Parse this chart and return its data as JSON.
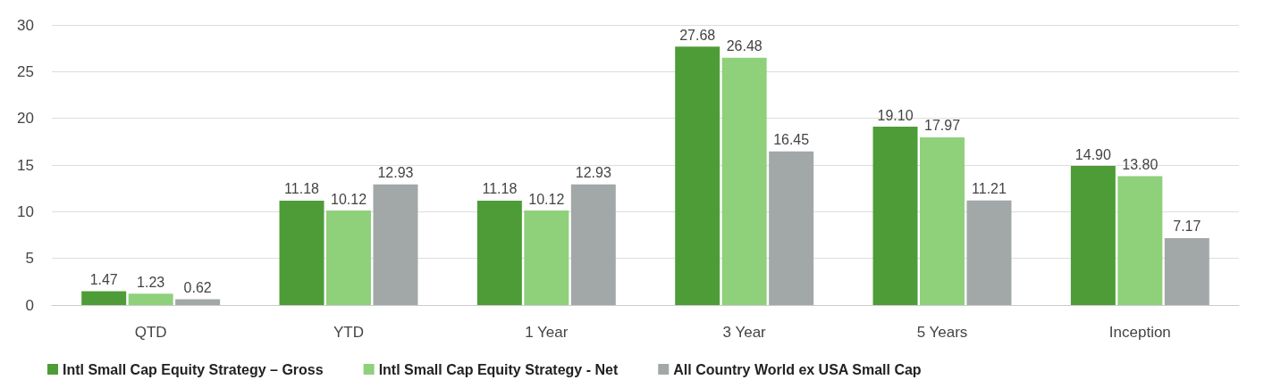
{
  "chart_data": {
    "type": "bar",
    "categories": [
      "QTD",
      "YTD",
      "1 Year",
      "3 Year",
      "5 Years",
      "Inception"
    ],
    "series": [
      {
        "name": "Intl Small Cap Equity Strategy – Gross",
        "color": "#4e9c38",
        "values": [
          1.47,
          11.18,
          11.18,
          27.68,
          19.1,
          14.9
        ],
        "value_labels": [
          "1.47",
          "11.18",
          "11.18",
          "27.68",
          "19.10",
          "14.90"
        ]
      },
      {
        "name": "Intl Small Cap Equity Strategy - Net",
        "color": "#8fd07b",
        "values": [
          1.23,
          10.12,
          10.12,
          26.48,
          17.97,
          13.8
        ],
        "value_labels": [
          "1.23",
          "10.12",
          "10.12",
          "26.48",
          "17.97",
          "13.80"
        ]
      },
      {
        "name": "All Country World ex USA Small Cap",
        "color": "#a2a7a7",
        "values": [
          0.62,
          12.93,
          12.93,
          16.45,
          11.21,
          7.17
        ],
        "value_labels": [
          "0.62",
          "12.93",
          "12.93",
          "16.45",
          "11.21",
          "7.17"
        ]
      }
    ],
    "ylim": [
      0,
      30
    ],
    "yticks": [
      0,
      5,
      10,
      15,
      20,
      25,
      30
    ],
    "grid": "y",
    "legend": "bottom"
  }
}
